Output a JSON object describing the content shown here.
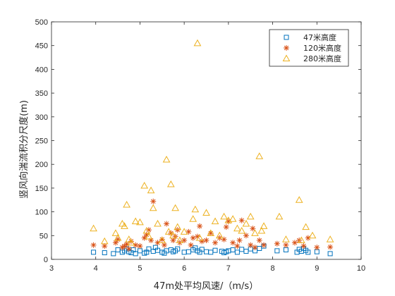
{
  "chart_data": {
    "type": "scatter",
    "title": "",
    "xlabel": "47m处平均风速/（m/s）",
    "ylabel": "竖风向湍流积分尺度(m)",
    "xlim": [
      3,
      10
    ],
    "ylim": [
      0,
      500
    ],
    "xticks": [
      3,
      4,
      5,
      6,
      7,
      8,
      9,
      10
    ],
    "yticks": [
      0,
      50,
      100,
      150,
      200,
      250,
      300,
      350,
      400,
      450,
      500
    ],
    "grid": false,
    "legend_position": "top-right",
    "series": [
      {
        "name": "47米高度",
        "marker": "square",
        "color": "#0072BD",
        "x": [
          3.95,
          4.2,
          4.4,
          4.5,
          4.6,
          4.65,
          4.7,
          4.75,
          4.8,
          4.85,
          4.9,
          5.0,
          5.1,
          5.15,
          5.2,
          5.3,
          5.35,
          5.4,
          5.5,
          5.55,
          5.6,
          5.7,
          5.75,
          5.8,
          5.85,
          6.0,
          6.1,
          6.2,
          6.25,
          6.3,
          6.35,
          6.4,
          6.5,
          6.6,
          6.7,
          6.85,
          6.9,
          6.95,
          7.0,
          7.1,
          7.2,
          7.3,
          7.4,
          7.5,
          7.6,
          7.7,
          7.8,
          8.1,
          8.3,
          8.55,
          8.6,
          8.65,
          8.7,
          8.75,
          8.8,
          9.0,
          9.3
        ],
        "y": [
          15,
          14,
          12,
          20,
          15,
          18,
          22,
          16,
          14,
          20,
          12,
          18,
          13,
          15,
          22,
          17,
          25,
          19,
          15,
          13,
          18,
          20,
          16,
          18,
          22,
          15,
          16,
          20,
          24,
          18,
          15,
          21,
          16,
          15,
          19,
          17,
          14,
          16,
          18,
          20,
          15,
          21,
          17,
          22,
          18,
          23,
          28,
          18,
          20,
          15,
          21,
          17,
          23,
          19,
          15,
          16,
          12
        ]
      },
      {
        "name": "120米高度",
        "marker": "asterisk",
        "color": "#D95319",
        "x": [
          3.95,
          4.2,
          4.45,
          4.5,
          4.6,
          4.65,
          4.7,
          4.75,
          4.8,
          4.9,
          5.0,
          5.1,
          5.15,
          5.2,
          5.25,
          5.3,
          5.4,
          5.5,
          5.55,
          5.6,
          5.7,
          5.75,
          5.8,
          5.85,
          5.9,
          6.0,
          6.1,
          6.15,
          6.2,
          6.3,
          6.35,
          6.4,
          6.5,
          6.6,
          6.7,
          6.8,
          6.9,
          6.95,
          7.0,
          7.1,
          7.2,
          7.25,
          7.3,
          7.4,
          7.5,
          7.55,
          7.6,
          7.7,
          7.8,
          8.1,
          8.3,
          8.5,
          8.6,
          8.7,
          8.8,
          9.0,
          9.3
        ],
        "y": [
          30,
          28,
          35,
          42,
          25,
          28,
          32,
          22,
          38,
          30,
          28,
          45,
          52,
          62,
          40,
          122,
          35,
          42,
          30,
          75,
          55,
          40,
          48,
          62,
          35,
          40,
          58,
          30,
          45,
          48,
          70,
          38,
          40,
          55,
          35,
          45,
          42,
          68,
          80,
          35,
          28,
          40,
          82,
          50,
          30,
          65,
          25,
          40,
          30,
          33,
          30,
          35,
          40,
          28,
          45,
          25,
          26
        ]
      },
      {
        "name": "280米高度",
        "marker": "triangle",
        "color": "#EDB120",
        "x": [
          3.95,
          4.2,
          4.45,
          4.5,
          4.6,
          4.65,
          4.7,
          4.75,
          4.8,
          4.9,
          5.0,
          5.1,
          5.15,
          5.2,
          5.25,
          5.3,
          5.4,
          5.5,
          5.6,
          5.65,
          5.7,
          5.75,
          5.8,
          5.85,
          5.9,
          6.0,
          6.2,
          6.25,
          6.3,
          6.35,
          6.5,
          6.6,
          6.7,
          6.8,
          6.9,
          7.0,
          7.1,
          7.2,
          7.3,
          7.4,
          7.5,
          7.6,
          7.7,
          7.75,
          7.8,
          8.15,
          8.3,
          8.6,
          8.65,
          8.75,
          8.9,
          9.3
        ],
        "y": [
          65,
          38,
          55,
          45,
          75,
          70,
          115,
          42,
          35,
          80,
          78,
          155,
          60,
          48,
          145,
          108,
          75,
          40,
          210,
          58,
          158,
          50,
          108,
          68,
          40,
          58,
          85,
          105,
          455,
          45,
          98,
          55,
          80,
          50,
          90,
          82,
          85,
          65,
          60,
          75,
          90,
          55,
          217,
          60,
          70,
          90,
          42,
          125,
          40,
          68,
          50,
          42
        ]
      }
    ]
  }
}
